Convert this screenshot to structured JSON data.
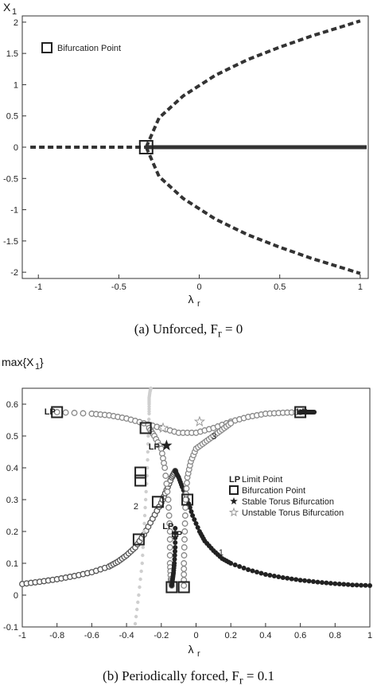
{
  "chart_data": [
    {
      "type": "line",
      "subfigure": "a",
      "ylabel": "X",
      "ylabel_sub": "1",
      "xlabel": "λ",
      "xlabel_sub": "r",
      "xlim": [
        -1.1,
        1.05
      ],
      "ylim": [
        -2.1,
        2.1
      ],
      "xticks": [
        "-1",
        "-0.5",
        "0",
        "0.5",
        "1"
      ],
      "xtick_values": [
        -1,
        -0.5,
        0,
        0.5,
        1
      ],
      "yticks": [
        "-2",
        "-1.5",
        "-1",
        "-0.5",
        "0",
        "0.5",
        "1",
        "1.5",
        "2"
      ],
      "ytick_values": [
        -2,
        -1.5,
        -1,
        -0.5,
        0,
        0.5,
        1,
        1.5,
        2
      ],
      "legend": {
        "placement": "top-left",
        "entries": [
          {
            "marker": "square",
            "label": "Bifurcation Point"
          }
        ]
      },
      "series": [
        {
          "style": "dashed",
          "x": [
            -1.05,
            -0.33
          ],
          "y": [
            0,
            0
          ]
        },
        {
          "style": "solid",
          "x": [
            -0.33,
            1.04
          ],
          "y": [
            0,
            0
          ]
        },
        {
          "style": "dashed",
          "x": [
            -0.33,
            -0.25,
            -0.1,
            0.1,
            0.3,
            0.5,
            0.7,
            0.9,
            1.0
          ],
          "y": [
            0,
            0.47,
            0.82,
            1.15,
            1.4,
            1.6,
            1.78,
            1.94,
            2.02
          ]
        },
        {
          "style": "dashed",
          "x": [
            -0.33,
            -0.25,
            -0.1,
            0.1,
            0.3,
            0.5,
            0.7,
            0.9,
            1.0
          ],
          "y": [
            0,
            -0.47,
            -0.82,
            -1.15,
            -1.4,
            -1.6,
            -1.78,
            -1.94,
            -2.02
          ]
        }
      ],
      "bifurcation_points": [
        {
          "x": -0.33,
          "y": 0
        }
      ],
      "caption": "(a) Unforced, F",
      "caption_sub": "r",
      "caption_tail": " = 0"
    },
    {
      "type": "line",
      "subfigure": "b",
      "ylabel": "max{X",
      "ylabel_sub": "1",
      "ylabel_tail": "}",
      "xlabel": "λ",
      "xlabel_sub": "r",
      "xlim": [
        -1,
        1
      ],
      "ylim": [
        -0.1,
        0.65
      ],
      "xticks": [
        "-1",
        "-0.8",
        "-0.6",
        "-0.4",
        "-0.2",
        "0",
        "0.2",
        "0.4",
        "0.6",
        "0.8",
        "1"
      ],
      "xtick_values": [
        -1,
        -0.8,
        -0.6,
        -0.4,
        -0.2,
        0,
        0.2,
        0.4,
        0.6,
        0.8,
        1
      ],
      "yticks": [
        "-0.1",
        "0",
        "0.1",
        "0.2",
        "0.3",
        "0.4",
        "0.5",
        "0.6"
      ],
      "ytick_values": [
        -0.1,
        0,
        0.1,
        0.2,
        0.3,
        0.4,
        0.5,
        0.6
      ],
      "legend": {
        "placement": "right",
        "entries": [
          {
            "marker": "LP",
            "label": "Limit Point"
          },
          {
            "marker": "square",
            "label": "Bifurcation Point"
          },
          {
            "marker": "filled-star",
            "label": "Stable Torus Bifurcation"
          },
          {
            "marker": "open-star",
            "label": "Unstable Torus Bifurcation"
          }
        ]
      },
      "series": [
        {
          "branch": "1-left-unstable",
          "marker": "open-circle",
          "color": "#555555",
          "x": [
            -1,
            -0.9,
            -0.8,
            -0.7,
            -0.6,
            -0.5,
            -0.45,
            -0.4,
            -0.35,
            -0.3,
            -0.25,
            -0.2,
            -0.17,
            -0.14,
            -0.12
          ],
          "y": [
            0.035,
            0.042,
            0.05,
            0.06,
            0.072,
            0.09,
            0.105,
            0.125,
            0.15,
            0.19,
            0.24,
            0.29,
            0.33,
            0.37,
            0.39
          ]
        },
        {
          "branch": "1-right-stable",
          "marker": "filled-circle",
          "color": "#222222",
          "x": [
            -0.12,
            -0.1,
            -0.08,
            -0.05,
            -0.02,
            0.02,
            0.05,
            0.1,
            0.15,
            0.2,
            0.3,
            0.4,
            0.5,
            0.6,
            0.7,
            0.8,
            0.9,
            1.0
          ],
          "y": [
            0.39,
            0.37,
            0.34,
            0.3,
            0.25,
            0.2,
            0.17,
            0.14,
            0.115,
            0.1,
            0.08,
            0.065,
            0.055,
            0.047,
            0.041,
            0.036,
            0.032,
            0.03
          ]
        },
        {
          "branch": "2",
          "marker": "light-dots",
          "color": "#cfcfcf",
          "x": [
            -0.35,
            -0.33,
            -0.31,
            -0.3,
            -0.29,
            -0.28,
            -0.275,
            -0.27,
            -0.27,
            -0.27,
            -0.265,
            -0.26
          ],
          "y": [
            -0.09,
            0.0,
            0.1,
            0.2,
            0.3,
            0.4,
            0.5,
            0.57,
            0.6,
            0.62,
            0.64,
            0.65
          ]
        },
        {
          "branch": "3-upper",
          "marker": "open-circle",
          "color": "#888888",
          "x": [
            -0.8,
            -0.6,
            -0.5,
            -0.4,
            -0.3,
            -0.2,
            -0.1,
            0,
            0.1,
            0.2,
            0.3,
            0.4,
            0.5,
            0.6
          ],
          "y": [
            0.575,
            0.57,
            0.565,
            0.555,
            0.54,
            0.525,
            0.51,
            0.51,
            0.525,
            0.545,
            0.56,
            0.57,
            0.573,
            0.575
          ]
        },
        {
          "branch": "3-lower-left",
          "marker": "open-circle",
          "color": "#888888",
          "x": [
            -0.27,
            -0.24,
            -0.2,
            -0.18,
            -0.16,
            -0.15,
            -0.15,
            -0.145,
            -0.14
          ],
          "y": [
            0.525,
            0.5,
            0.46,
            0.4,
            0.3,
            0.2,
            0.1,
            0.05,
            0.03
          ]
        },
        {
          "branch": "3-lower-right",
          "marker": "open-circle",
          "color": "#888888",
          "x": [
            -0.07,
            -0.07,
            -0.065,
            -0.06,
            -0.05,
            -0.03,
            0.0,
            0.05,
            0.1,
            0.15,
            0.2
          ],
          "y": [
            0.03,
            0.1,
            0.2,
            0.3,
            0.37,
            0.42,
            0.46,
            0.48,
            0.5,
            0.52,
            0.54
          ]
        },
        {
          "branch": "stable-spike-left",
          "marker": "filled-circle",
          "color": "#222222",
          "x": [
            -0.12,
            -0.12,
            -0.125,
            -0.13,
            -0.135,
            -0.14
          ],
          "y": [
            0.21,
            0.15,
            0.1,
            0.07,
            0.05,
            0.03
          ]
        },
        {
          "branch": "stable-tail-right",
          "marker": "filled-circle",
          "color": "#222222",
          "x": [
            0.6,
            0.62,
            0.64,
            0.66,
            0.68
          ],
          "y": [
            0.575,
            0.575,
            0.575,
            0.575,
            0.575
          ]
        }
      ],
      "bifurcation_points": [
        {
          "x": -0.8,
          "y": 0.575
        },
        {
          "x": 0.6,
          "y": 0.575
        },
        {
          "x": -0.29,
          "y": 0.525
        },
        {
          "x": -0.32,
          "y": 0.385
        },
        {
          "x": -0.32,
          "y": 0.36
        },
        {
          "x": -0.22,
          "y": 0.293
        },
        {
          "x": -0.05,
          "y": 0.3
        },
        {
          "x": -0.33,
          "y": 0.175
        },
        {
          "x": -0.14,
          "y": 0.025
        },
        {
          "x": -0.07,
          "y": 0.025
        }
      ],
      "limit_point_markers": [
        {
          "x": -0.8,
          "y": 0.575,
          "label": "LP"
        },
        {
          "x": 0.65,
          "y": 0.575,
          "label": "LP"
        },
        {
          "x": -0.2,
          "y": 0.465,
          "label": "LP"
        },
        {
          "x": -0.12,
          "y": 0.215,
          "label": "LP"
        },
        {
          "x": -0.07,
          "y": 0.19,
          "label": "LP"
        }
      ],
      "stable_torus": [
        {
          "x": -0.17,
          "y": 0.47
        }
      ],
      "unstable_torus": [
        {
          "x": -0.19,
          "y": 0.525
        },
        {
          "x": 0.02,
          "y": 0.545
        }
      ],
      "branch_labels": [
        {
          "x": -0.36,
          "y": 0.27,
          "text": "2"
        },
        {
          "x": 0.09,
          "y": 0.49,
          "text": "3"
        },
        {
          "x": 0.13,
          "y": 0.125,
          "text": "1"
        }
      ],
      "caption": "(b) Periodically forced, F",
      "caption_sub": "r",
      "caption_tail": " = 0.1"
    }
  ]
}
